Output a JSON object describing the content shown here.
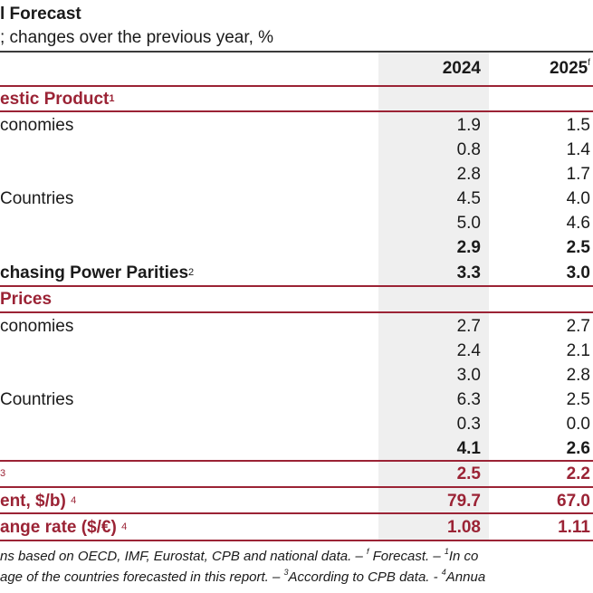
{
  "title": "l Forecast",
  "subtitle": "; changes over the previous year, %",
  "years": {
    "y1": "2024",
    "y2": "2025",
    "y2_note": "f"
  },
  "sections": {
    "gdp": {
      "label": "estic Product",
      "note": "1"
    },
    "prices": {
      "label": "Prices"
    }
  },
  "gdp_rows": [
    {
      "label": "conomies",
      "v1": "1.9",
      "v2": "1.5"
    },
    {
      "label": "",
      "v1": "0.8",
      "v2": "1.4"
    },
    {
      "label": "",
      "v1": "2.8",
      "v2": "1.7"
    },
    {
      "label": "Countries",
      "v1": "4.5",
      "v2": "4.0"
    },
    {
      "label": "",
      "v1": "5.0",
      "v2": "4.6"
    },
    {
      "label": "",
      "v1": "2.9",
      "v2": "2.5"
    }
  ],
  "ppp_row": {
    "label": "chasing Power Parities",
    "note": "2",
    "v1": "3.3",
    "v2": "3.0"
  },
  "price_rows": [
    {
      "label": "conomies",
      "v1": "2.7",
      "v2": "2.7"
    },
    {
      "label": "",
      "v1": "2.4",
      "v2": "2.1"
    },
    {
      "label": "",
      "v1": "3.0",
      "v2": "2.8"
    },
    {
      "label": "Countries",
      "v1": "6.3",
      "v2": "2.5"
    },
    {
      "label": "",
      "v1": "0.3",
      "v2": "0.0"
    },
    {
      "label": "",
      "v1": "4.1",
      "v2": "2.6"
    }
  ],
  "special_rows": [
    {
      "label": "",
      "note": "3",
      "v1": "2.5",
      "v2": "2.2"
    },
    {
      "label": "ent, $/b)",
      "note": "4",
      "v1": "79.7",
      "v2": "67.0"
    },
    {
      "label": "ange rate ($/€)",
      "note": "4",
      "v1": "1.08",
      "v2": "1.11"
    }
  ],
  "footnotes": {
    "line1_a": "ns based on OECD, IMF, Eurostat, CPB and national data. – ",
    "line1_sup_f": "f",
    "line1_b": " Forecast. – ",
    "line1_sup_1": "1",
    "line1_c": "In co",
    "line2_a": "age of the countries forecasted in this report. – ",
    "line2_sup_3": "3",
    "line2_b": "According to CPB data. - ",
    "line2_sup_4": "4",
    "line2_c": "Annua"
  },
  "colors": {
    "accent": "#9b2335",
    "shade": "#efefef"
  }
}
